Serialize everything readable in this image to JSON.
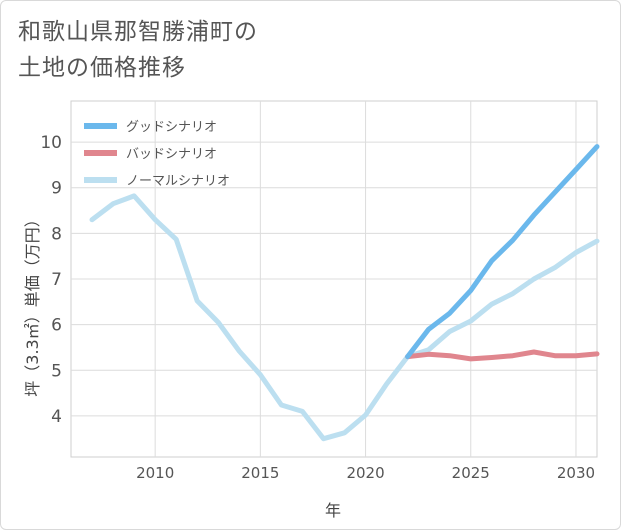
{
  "title_line1": "和歌山県那智勝浦町の",
  "title_line2": "土地の価格推移",
  "chart_data": {
    "type": "line",
    "xlabel": "年",
    "ylabel": "坪（3.3㎡）単価（万円）",
    "xlim": [
      2006,
      2031
    ],
    "ylim": [
      3.1,
      10.9
    ],
    "xticks": [
      2010,
      2015,
      2020,
      2025,
      2030
    ],
    "yticks": [
      4,
      5,
      6,
      7,
      8,
      9,
      10
    ],
    "grid": true,
    "legend_position": "top-left",
    "series": [
      {
        "name": "グッドシナリオ",
        "color": "#6bb8ec",
        "x": [
          2022,
          2023,
          2024,
          2025,
          2026,
          2027,
          2028,
          2029,
          2030,
          2031
        ],
        "y": [
          5.3,
          5.9,
          6.25,
          6.75,
          7.4,
          7.85,
          8.4,
          8.9,
          9.4,
          9.9
        ]
      },
      {
        "name": "バッドシナリオ",
        "color": "#e0868e",
        "x": [
          2022,
          2023,
          2024,
          2025,
          2026,
          2027,
          2028,
          2029,
          2030,
          2031
        ],
        "y": [
          5.3,
          5.35,
          5.32,
          5.25,
          5.28,
          5.32,
          5.4,
          5.32,
          5.32,
          5.36
        ]
      },
      {
        "name": "ノーマルシナリオ",
        "color": "#bcdff0",
        "x": [
          2007,
          2008,
          2009,
          2010,
          2011,
          2012,
          2013,
          2014,
          2015,
          2016,
          2017,
          2018,
          2019,
          2020,
          2021,
          2022,
          2023,
          2024,
          2025,
          2026,
          2027,
          2028,
          2029,
          2030,
          2031
        ],
        "y": [
          8.3,
          8.65,
          8.82,
          8.3,
          7.87,
          6.52,
          6.05,
          5.42,
          4.9,
          4.24,
          4.1,
          3.5,
          3.63,
          4.02,
          4.7,
          5.3,
          5.45,
          5.85,
          6.08,
          6.45,
          6.68,
          7.0,
          7.25,
          7.58,
          7.83
        ]
      }
    ]
  }
}
